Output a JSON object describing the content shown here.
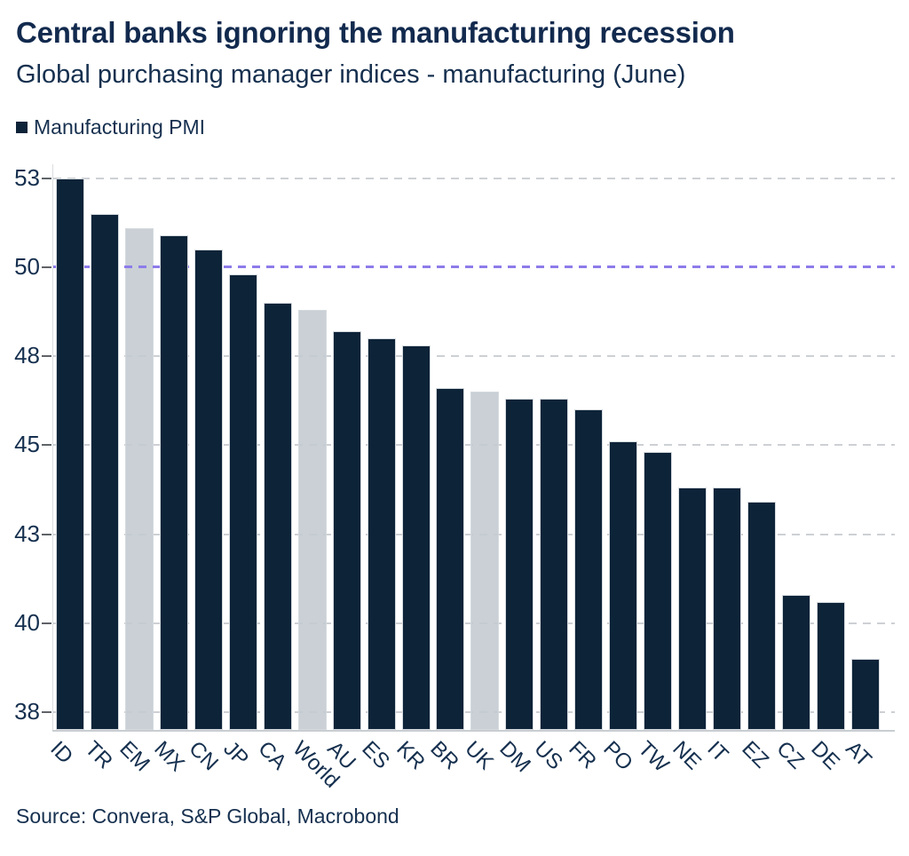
{
  "header": {
    "title": "Central banks ignoring the manufacturing recession",
    "subtitle": "Global purchasing manager indices - manufacturing (June)"
  },
  "legend": {
    "label": "Manufacturing PMI"
  },
  "source": {
    "text": "Source: Convera, S&P Global, Macrobond"
  },
  "colors": {
    "bar": "#0d2338",
    "bar_muted": "#c3c9cf",
    "grid": "#cdd0d4",
    "reference_line": "#8d7cea",
    "text": "#16304f",
    "axis": "#d9dcdf"
  },
  "chart_data": {
    "type": "bar",
    "title": "Central banks ignoring the manufacturing recession",
    "subtitle": "Global purchasing manager indices - manufacturing (June)",
    "legend_entries": [
      "Manufacturing PMI"
    ],
    "legend_position": "top-left",
    "grid": true,
    "categories": [
      "ID",
      "TR",
      "EM",
      "MX",
      "CN",
      "JP",
      "CA",
      "World",
      "AU",
      "ES",
      "KR",
      "BR",
      "UK",
      "DM",
      "US",
      "FR",
      "PO",
      "TW",
      "NE",
      "IT",
      "EZ",
      "CZ",
      "DE",
      "AT"
    ],
    "values": [
      52.5,
      51.5,
      51.1,
      50.9,
      50.5,
      49.8,
      49.0,
      48.8,
      48.2,
      48.0,
      47.8,
      46.6,
      46.5,
      46.3,
      46.3,
      46.0,
      45.1,
      44.8,
      43.8,
      43.8,
      43.4,
      40.8,
      40.6,
      39.0
    ],
    "muted_indices": [
      2,
      7,
      12
    ],
    "xlabel": "",
    "ylabel": "",
    "ylim": [
      37.0,
      52.9
    ],
    "y_axis": {
      "ticks": [
        {
          "label": "53",
          "value": 52.5
        },
        {
          "label": "50",
          "value": 50.0
        },
        {
          "label": "48",
          "value": 47.5
        },
        {
          "label": "45",
          "value": 45.0
        },
        {
          "label": "43",
          "value": 42.5
        },
        {
          "label": "40",
          "value": 40.0
        },
        {
          "label": "38",
          "value": 37.5
        }
      ]
    },
    "reference_line": {
      "value": 50.0,
      "meaning": "expansion/contraction threshold"
    }
  }
}
